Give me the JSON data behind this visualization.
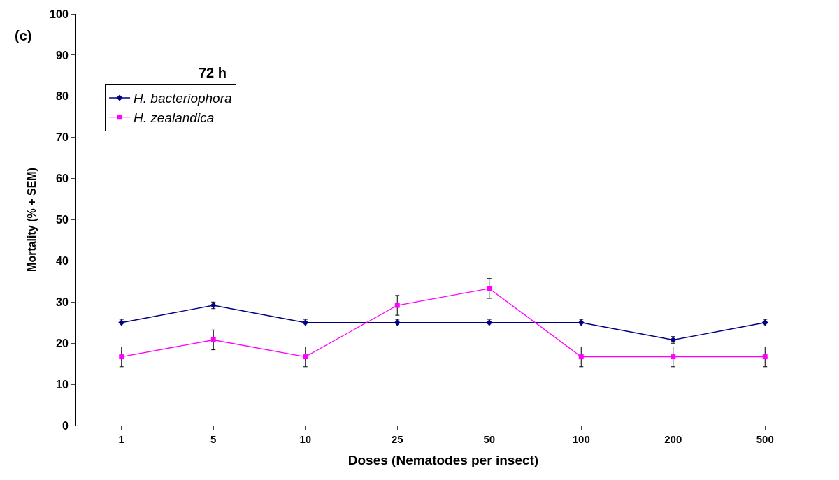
{
  "chart_data": {
    "type": "line",
    "xlabel": "Doses (Nematodes per insect)",
    "ylabel": "Mortality (% + SEM)",
    "annotations": [
      "(c)",
      "72 h"
    ],
    "categories": [
      "1",
      "5",
      "10",
      "25",
      "50",
      "100",
      "200",
      "500"
    ],
    "series": [
      {
        "name": "H. bacteriophora",
        "color": "#000080",
        "marker": "diamond",
        "values": [
          25,
          29.2,
          25,
          25,
          25,
          25,
          20.8,
          25
        ],
        "errors": [
          0.8,
          0.8,
          0.8,
          0.8,
          0.8,
          0.8,
          0.8,
          0.8
        ]
      },
      {
        "name": "H. zealandica",
        "color": "#ff00ff",
        "marker": "square",
        "values": [
          16.7,
          20.8,
          16.7,
          29.2,
          33.3,
          16.7,
          16.7,
          16.7
        ],
        "errors": [
          2.4,
          2.4,
          2.4,
          2.4,
          2.4,
          2.4,
          2.4,
          2.4
        ]
      }
    ],
    "ylim": [
      0,
      100
    ],
    "yticks": [
      0,
      10,
      20,
      30,
      40,
      50,
      60,
      70,
      80,
      90,
      100
    ],
    "legend": "top left",
    "line_style": "solid"
  }
}
